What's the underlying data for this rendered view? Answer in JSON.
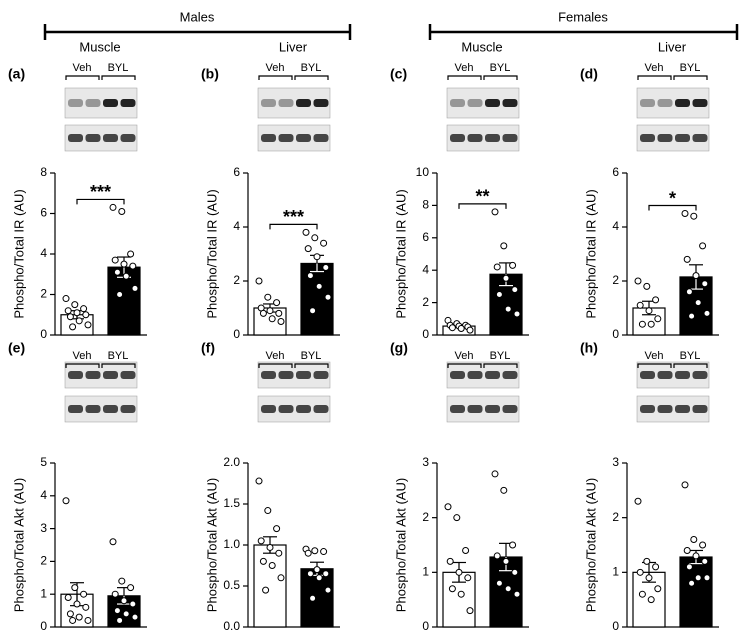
{
  "groups": [
    {
      "label": "Males",
      "tissues": [
        "Muscle",
        "Liver"
      ]
    },
    {
      "label": "Females",
      "tissues": [
        "Muscle",
        "Liver"
      ]
    }
  ],
  "chart_data": [
    {
      "type": "bar",
      "panel": "(a)",
      "ylabel": "Phospho/Total IR (AU)",
      "categories": [
        "Veh",
        "BYL"
      ],
      "values": [
        1.0,
        3.35
      ],
      "errors": [
        0.2,
        0.5
      ],
      "colors": [
        "#ffffff",
        "#000000"
      ],
      "points": [
        [
          1.8,
          1.5,
          1.3,
          1.2,
          1.1,
          1.0,
          0.9,
          0.7,
          0.5,
          0.4
        ],
        [
          6.3,
          6.1,
          4.0,
          3.7,
          3.5,
          3.4,
          3.1,
          2.9,
          2.3,
          2.0
        ]
      ],
      "significance": "***",
      "ylim": [
        0,
        8
      ],
      "yticks": [
        0,
        2,
        4,
        6,
        8
      ]
    },
    {
      "type": "bar",
      "panel": "(b)",
      "ylabel": "Phospho/Total IR (AU)",
      "categories": [
        "Veh",
        "BYL"
      ],
      "values": [
        1.0,
        2.65
      ],
      "errors": [
        0.15,
        0.3
      ],
      "colors": [
        "#ffffff",
        "#000000"
      ],
      "points": [
        [
          2.0,
          1.4,
          1.2,
          1.0,
          0.9,
          0.8,
          0.8,
          0.6,
          0.5
        ],
        [
          3.8,
          3.6,
          3.4,
          3.2,
          2.9,
          2.5,
          2.2,
          1.8,
          1.4,
          0.9
        ]
      ],
      "significance": "***",
      "ylim": [
        0,
        6
      ],
      "yticks": [
        0,
        2,
        4,
        6
      ]
    },
    {
      "type": "bar",
      "panel": "(c)",
      "ylabel": "Phospho/Total IR (AU)",
      "categories": [
        "Veh",
        "BYL"
      ],
      "values": [
        0.55,
        3.75
      ],
      "errors": [
        0.08,
        0.7
      ],
      "colors": [
        "#ffffff",
        "#000000"
      ],
      "points": [
        [
          0.9,
          0.7,
          0.6,
          0.6,
          0.55,
          0.5,
          0.45,
          0.4,
          0.3
        ],
        [
          7.6,
          5.5,
          4.3,
          4.2,
          3.5,
          2.8,
          2.5,
          1.6,
          1.3
        ]
      ],
      "significance": "**",
      "ylim": [
        0,
        10
      ],
      "yticks": [
        0,
        2,
        4,
        6,
        8,
        10
      ]
    },
    {
      "type": "bar",
      "panel": "(d)",
      "ylabel": "Phospho/Total IR (AU)",
      "categories": [
        "Veh",
        "BYL"
      ],
      "values": [
        1.0,
        2.15
      ],
      "errors": [
        0.25,
        0.45
      ],
      "colors": [
        "#ffffff",
        "#000000"
      ],
      "points": [
        [
          2.0,
          1.8,
          1.3,
          1.1,
          0.9,
          0.6,
          0.4,
          0.4
        ],
        [
          4.5,
          4.4,
          3.3,
          2.8,
          2.2,
          1.9,
          1.6,
          1.2,
          0.8,
          0.7
        ]
      ],
      "significance": "*",
      "ylim": [
        0,
        6
      ],
      "yticks": [
        0,
        2,
        4,
        6
      ]
    },
    {
      "type": "bar",
      "panel": "(e)",
      "ylabel": "Phospho/Total Akt (AU)",
      "categories": [
        "Veh",
        "BYL"
      ],
      "values": [
        1.0,
        0.95
      ],
      "errors": [
        0.35,
        0.25
      ],
      "colors": [
        "#ffffff",
        "#000000"
      ],
      "points": [
        [
          3.85,
          1.2,
          1.0,
          0.9,
          0.7,
          0.6,
          0.4,
          0.3,
          0.2,
          0.2
        ],
        [
          2.6,
          1.4,
          1.2,
          1.0,
          0.8,
          0.7,
          0.5,
          0.4,
          0.3,
          0.2
        ]
      ],
      "ylim": [
        0,
        5
      ],
      "yticks": [
        0,
        1,
        2,
        3,
        4,
        5
      ]
    },
    {
      "type": "bar",
      "panel": "(f)",
      "ylabel": "Phospho/Total Akt (AU)",
      "categories": [
        "Veh",
        "BYL"
      ],
      "values": [
        1.0,
        0.71
      ],
      "errors": [
        0.1,
        0.08
      ],
      "colors": [
        "#ffffff",
        "#000000"
      ],
      "points": [
        [
          1.78,
          1.42,
          1.2,
          1.05,
          0.97,
          0.9,
          0.8,
          0.75,
          0.6,
          0.45
        ],
        [
          0.95,
          0.93,
          0.92,
          0.9,
          0.7,
          0.65,
          0.65,
          0.6,
          0.45,
          0.35
        ]
      ],
      "ylim": [
        0,
        2
      ],
      "yticks": [
        {
          "value": 0,
          "label": "0.0"
        },
        {
          "value": 0.5,
          "label": "0.5"
        },
        {
          "value": 1,
          "label": "1.0"
        },
        {
          "value": 1.5,
          "label": "1.5"
        },
        {
          "value": 2,
          "label": "2.0"
        }
      ]
    },
    {
      "type": "bar",
      "panel": "(g)",
      "ylabel": "Phospho/Total Akt (AU)",
      "categories": [
        "Veh",
        "BYL"
      ],
      "values": [
        1.0,
        1.28
      ],
      "errors": [
        0.18,
        0.25
      ],
      "colors": [
        "#ffffff",
        "#000000"
      ],
      "points": [
        [
          2.2,
          2.0,
          1.4,
          1.2,
          1.0,
          0.9,
          0.7,
          0.6,
          0.3
        ],
        [
          2.8,
          2.5,
          1.5,
          1.3,
          1.2,
          1.0,
          0.8,
          0.7,
          0.6
        ]
      ],
      "ylim": [
        0,
        3
      ],
      "yticks": [
        0,
        1,
        2,
        3
      ]
    },
    {
      "type": "bar",
      "panel": "(h)",
      "ylabel": "Phospho/Total Akt (AU)",
      "categories": [
        "Veh",
        "BYL"
      ],
      "values": [
        1.0,
        1.28
      ],
      "errors": [
        0.18,
        0.12
      ],
      "colors": [
        "#ffffff",
        "#000000"
      ],
      "points": [
        [
          2.3,
          1.2,
          1.1,
          1.0,
          0.9,
          0.7,
          0.6,
          0.5
        ],
        [
          2.6,
          1.6,
          1.5,
          1.4,
          1.3,
          1.2,
          1.1,
          0.9,
          0.9,
          0.8
        ]
      ],
      "ylim": [
        0,
        3
      ],
      "yticks": [
        0,
        1,
        2,
        3
      ]
    }
  ]
}
